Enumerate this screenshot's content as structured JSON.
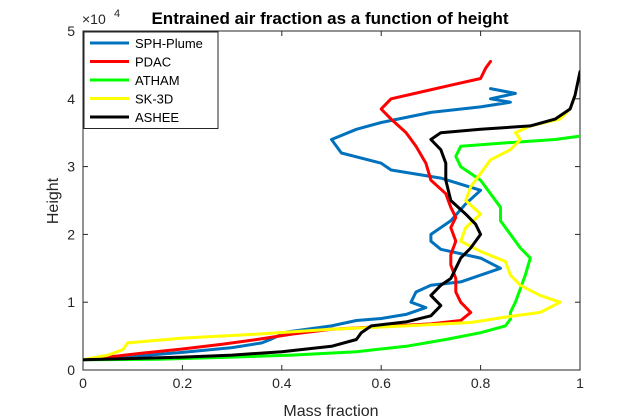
{
  "chart_data": {
    "type": "line",
    "title": "Entrained air fraction as a function of height",
    "xlabel": "Mass fraction",
    "ylabel": "Height",
    "y_exponent_label": "×10",
    "y_exponent_power": "4",
    "xlim": [
      0,
      1
    ],
    "ylim": [
      0,
      50000
    ],
    "x_ticks": [
      0,
      0.2,
      0.4,
      0.6,
      0.8,
      1
    ],
    "x_tick_labels": [
      "0",
      "0.2",
      "0.4",
      "0.6",
      "0.8",
      "1"
    ],
    "y_ticks": [
      0,
      10000,
      20000,
      30000,
      40000,
      50000
    ],
    "y_tick_labels": [
      "0",
      "1",
      "2",
      "3",
      "4",
      "5"
    ],
    "legend_position": "top-left",
    "grid": false,
    "series": [
      {
        "name": "SPH-Plume",
        "color": "#0072BD",
        "points": [
          [
            0,
            1500
          ],
          [
            0.1,
            2000
          ],
          [
            0.2,
            2600
          ],
          [
            0.3,
            3300
          ],
          [
            0.36,
            4000
          ],
          [
            0.38,
            4600
          ],
          [
            0.41,
            5600
          ],
          [
            0.5,
            6500
          ],
          [
            0.55,
            7300
          ],
          [
            0.6,
            7600
          ],
          [
            0.65,
            8200
          ],
          [
            0.69,
            9200
          ],
          [
            0.66,
            10000
          ],
          [
            0.67,
            11500
          ],
          [
            0.7,
            12500
          ],
          [
            0.76,
            13000
          ],
          [
            0.84,
            15000
          ],
          [
            0.8,
            16500
          ],
          [
            0.72,
            17800
          ],
          [
            0.7,
            19000
          ],
          [
            0.7,
            20000
          ],
          [
            0.74,
            22000
          ],
          [
            0.77,
            24500
          ],
          [
            0.8,
            26500
          ],
          [
            0.72,
            28300
          ],
          [
            0.62,
            29500
          ],
          [
            0.6,
            30500
          ],
          [
            0.52,
            32000
          ],
          [
            0.5,
            34000
          ],
          [
            0.55,
            35500
          ],
          [
            0.6,
            36500
          ],
          [
            0.7,
            38000
          ],
          [
            0.8,
            38800
          ],
          [
            0.86,
            39500
          ],
          [
            0.82,
            40000
          ],
          [
            0.87,
            40800
          ],
          [
            0.82,
            41500
          ]
        ]
      },
      {
        "name": "PDAC",
        "color": "#FF0000",
        "points": [
          [
            0,
            1500
          ],
          [
            0.05,
            1900
          ],
          [
            0.12,
            2500
          ],
          [
            0.2,
            3100
          ],
          [
            0.28,
            3800
          ],
          [
            0.35,
            4500
          ],
          [
            0.42,
            5300
          ],
          [
            0.5,
            6000
          ],
          [
            0.6,
            6400
          ],
          [
            0.7,
            6800
          ],
          [
            0.76,
            7300
          ],
          [
            0.78,
            8500
          ],
          [
            0.76,
            10000
          ],
          [
            0.75,
            11500
          ],
          [
            0.75,
            13500
          ],
          [
            0.74,
            15500
          ],
          [
            0.74,
            17000
          ],
          [
            0.75,
            19000
          ],
          [
            0.74,
            21000
          ],
          [
            0.75,
            22500
          ],
          [
            0.74,
            24000
          ],
          [
            0.73,
            26000
          ],
          [
            0.7,
            28000
          ],
          [
            0.69,
            30500
          ],
          [
            0.67,
            33000
          ],
          [
            0.65,
            35000
          ],
          [
            0.62,
            37000
          ],
          [
            0.6,
            38500
          ],
          [
            0.62,
            40000
          ],
          [
            0.68,
            41000
          ],
          [
            0.74,
            42000
          ],
          [
            0.8,
            43000
          ],
          [
            0.81,
            44500
          ],
          [
            0.82,
            45500
          ]
        ]
      },
      {
        "name": "ATHAM",
        "color": "#00FF00",
        "points": [
          [
            0,
            1500
          ],
          [
            0.15,
            1600
          ],
          [
            0.3,
            1900
          ],
          [
            0.42,
            2200
          ],
          [
            0.55,
            2700
          ],
          [
            0.65,
            3500
          ],
          [
            0.73,
            4500
          ],
          [
            0.8,
            5500
          ],
          [
            0.85,
            6500
          ],
          [
            0.86,
            7500
          ],
          [
            0.86,
            8500
          ],
          [
            0.87,
            10000
          ],
          [
            0.88,
            12000
          ],
          [
            0.89,
            14000
          ],
          [
            0.9,
            16500
          ],
          [
            0.88,
            18000
          ],
          [
            0.86,
            20000
          ],
          [
            0.84,
            22000
          ],
          [
            0.84,
            24000
          ],
          [
            0.82,
            26000
          ],
          [
            0.8,
            28000
          ],
          [
            0.76,
            30000
          ],
          [
            0.75,
            31500
          ],
          [
            0.76,
            33000
          ],
          [
            0.85,
            33500
          ],
          [
            0.95,
            34000
          ],
          [
            1.0,
            34500
          ]
        ]
      },
      {
        "name": "SK-3D",
        "color": "#FFFF00",
        "points": [
          [
            0,
            1500
          ],
          [
            0.05,
            2200
          ],
          [
            0.08,
            3000
          ],
          [
            0.09,
            4000
          ],
          [
            0.2,
            4700
          ],
          [
            0.35,
            5300
          ],
          [
            0.5,
            6000
          ],
          [
            0.65,
            6500
          ],
          [
            0.78,
            7000
          ],
          [
            0.85,
            7800
          ],
          [
            0.92,
            8500
          ],
          [
            0.96,
            10000
          ],
          [
            0.92,
            11000
          ],
          [
            0.88,
            12500
          ],
          [
            0.86,
            14000
          ],
          [
            0.85,
            16000
          ],
          [
            0.8,
            17500
          ],
          [
            0.76,
            19000
          ],
          [
            0.77,
            21000
          ],
          [
            0.8,
            23000
          ],
          [
            0.77,
            25000
          ],
          [
            0.78,
            27000
          ],
          [
            0.8,
            29000
          ],
          [
            0.82,
            31000
          ],
          [
            0.86,
            32500
          ],
          [
            0.88,
            34000
          ],
          [
            0.87,
            35000
          ],
          [
            0.9,
            36000
          ],
          [
            0.96,
            37000
          ],
          [
            0.98,
            38500
          ],
          [
            0.99,
            40500
          ]
        ]
      },
      {
        "name": "ASHEE",
        "color": "#000000",
        "points": [
          [
            0,
            1500
          ],
          [
            0.1,
            1700
          ],
          [
            0.2,
            1900
          ],
          [
            0.3,
            2200
          ],
          [
            0.4,
            2700
          ],
          [
            0.5,
            3500
          ],
          [
            0.55,
            4500
          ],
          [
            0.56,
            5500
          ],
          [
            0.58,
            6500
          ],
          [
            0.65,
            7100
          ],
          [
            0.7,
            8000
          ],
          [
            0.72,
            9500
          ],
          [
            0.7,
            11000
          ],
          [
            0.72,
            12500
          ],
          [
            0.74,
            13500
          ],
          [
            0.75,
            15000
          ],
          [
            0.76,
            16500
          ],
          [
            0.78,
            18000
          ],
          [
            0.8,
            20000
          ],
          [
            0.79,
            21500
          ],
          [
            0.77,
            23000
          ],
          [
            0.74,
            25000
          ],
          [
            0.73,
            28000
          ],
          [
            0.73,
            30500
          ],
          [
            0.72,
            32500
          ],
          [
            0.7,
            34000
          ],
          [
            0.72,
            35000
          ],
          [
            0.8,
            35500
          ],
          [
            0.9,
            36000
          ],
          [
            0.95,
            37000
          ],
          [
            0.98,
            38500
          ],
          [
            0.99,
            40500
          ],
          [
            1.0,
            44000
          ]
        ]
      }
    ]
  }
}
